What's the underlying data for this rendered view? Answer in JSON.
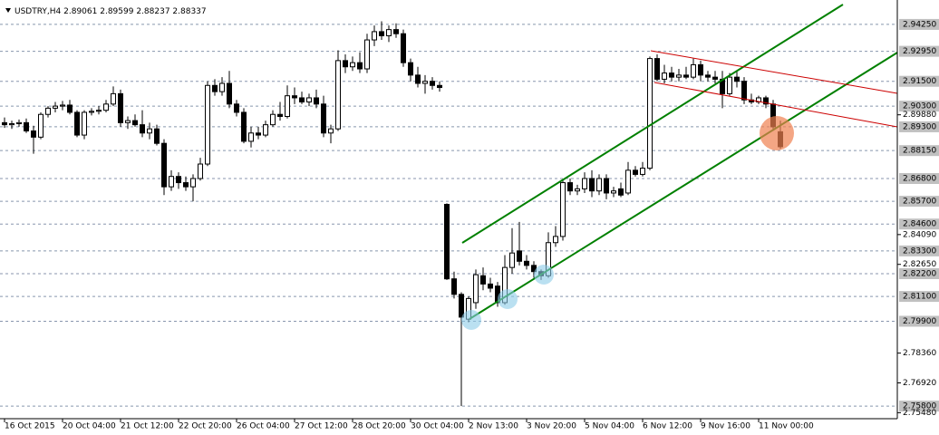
{
  "chart_data": {
    "type": "candlestick",
    "title": "USDTRY,H4",
    "categories": [
      "16 Oct 2015",
      null,
      null,
      null,
      null,
      null,
      null,
      null,
      "20 Oct 04:00",
      null,
      null,
      null,
      null,
      null,
      null,
      null,
      "21 Oct 12:00",
      null,
      null,
      null,
      null,
      null,
      null,
      null,
      "22 Oct 20:00",
      null,
      null,
      null,
      null,
      null,
      null,
      null,
      "26 Oct 04:00",
      null,
      null,
      null,
      null,
      null,
      null,
      null,
      "27 Oct 12:00",
      null,
      null,
      null,
      null,
      null,
      null,
      null,
      "28 Oct 20:00",
      null,
      null,
      null,
      null,
      null,
      null,
      null,
      "30 Oct 04:00",
      null,
      null,
      null,
      null,
      null,
      null,
      null,
      "2 Nov 13:00",
      null,
      null,
      null,
      null,
      null,
      null,
      null,
      "3 Nov 20:00",
      null,
      null,
      null,
      null,
      null,
      null,
      null,
      "5 Nov 04:00",
      null,
      null,
      null,
      null,
      null,
      null,
      null,
      "6 Nov 12:00",
      null,
      null,
      null,
      null,
      null,
      null,
      null,
      "9 Nov 16:00",
      null,
      null,
      null,
      null,
      null,
      null,
      null,
      "11 Nov 00:00",
      null,
      null,
      null
    ],
    "ohlc": [
      [
        2.895,
        2.8975,
        2.8925,
        2.894
      ],
      [
        2.894,
        2.896,
        2.892,
        2.8945
      ],
      [
        2.8945,
        2.8965,
        2.893,
        2.895
      ],
      [
        2.895,
        2.897,
        2.89,
        2.891
      ],
      [
        2.891,
        2.8935,
        2.88,
        2.888
      ],
      [
        2.888,
        2.9,
        2.887,
        2.899
      ],
      [
        2.899,
        2.903,
        2.8975,
        2.902
      ],
      [
        2.902,
        2.905,
        2.9,
        2.903
      ],
      [
        2.903,
        2.9055,
        2.901,
        2.9035
      ],
      [
        2.9035,
        2.906,
        2.899,
        2.9
      ],
      [
        2.9,
        2.901,
        2.888,
        2.889
      ],
      [
        2.889,
        2.901,
        2.887,
        2.9
      ],
      [
        2.9,
        2.902,
        2.8985,
        2.9005
      ],
      [
        2.9005,
        2.903,
        2.899,
        2.901
      ],
      [
        2.901,
        2.906,
        2.9,
        2.904
      ],
      [
        2.904,
        2.9125,
        2.903,
        2.909
      ],
      [
        2.909,
        2.911,
        2.893,
        2.895
      ],
      [
        2.895,
        2.898,
        2.892,
        2.896
      ],
      [
        2.896,
        2.899,
        2.893,
        2.894
      ],
      [
        2.894,
        2.901,
        2.888,
        2.89
      ],
      [
        2.89,
        2.895,
        2.887,
        2.892
      ],
      [
        2.892,
        2.894,
        2.884,
        2.885
      ],
      [
        2.885,
        2.887,
        2.86,
        2.864
      ],
      [
        2.864,
        2.872,
        2.862,
        2.869
      ],
      [
        2.869,
        2.871,
        2.863,
        2.866
      ],
      [
        2.866,
        2.869,
        2.862,
        2.864
      ],
      [
        2.864,
        2.87,
        2.857,
        2.868
      ],
      [
        2.868,
        2.878,
        2.867,
        2.875
      ],
      [
        2.875,
        2.915,
        2.874,
        2.913
      ],
      [
        2.913,
        2.916,
        2.908,
        2.91
      ],
      [
        2.91,
        2.917,
        2.908,
        2.914
      ],
      [
        2.914,
        2.92,
        2.902,
        2.904
      ],
      [
        2.904,
        2.906,
        2.898,
        2.9
      ],
      [
        2.9,
        2.902,
        2.885,
        2.886
      ],
      [
        2.886,
        2.893,
        2.883,
        2.89
      ],
      [
        2.89,
        2.893,
        2.887,
        2.889
      ],
      [
        2.889,
        2.896,
        2.888,
        2.894
      ],
      [
        2.894,
        2.901,
        2.893,
        2.899
      ],
      [
        2.899,
        2.905,
        2.896,
        2.898
      ],
      [
        2.898,
        2.913,
        2.897,
        2.908
      ],
      [
        2.908,
        2.912,
        2.904,
        2.907
      ],
      [
        2.907,
        2.91,
        2.904,
        2.905
      ],
      [
        2.905,
        2.909,
        2.903,
        2.907
      ],
      [
        2.907,
        2.911,
        2.902,
        2.904
      ],
      [
        2.904,
        2.908,
        2.888,
        2.89
      ],
      [
        2.89,
        2.894,
        2.885,
        2.892
      ],
      [
        2.892,
        2.93,
        2.891,
        2.925
      ],
      [
        2.925,
        2.928,
        2.919,
        2.922
      ],
      [
        2.922,
        2.927,
        2.92,
        2.924
      ],
      [
        2.924,
        2.929,
        2.919,
        2.921
      ],
      [
        2.921,
        2.938,
        2.919,
        2.935
      ],
      [
        2.935,
        2.942,
        2.932,
        2.939
      ],
      [
        2.939,
        2.944,
        2.935,
        2.937
      ],
      [
        2.937,
        2.942,
        2.934,
        2.94
      ],
      [
        2.94,
        2.943,
        2.936,
        2.938
      ],
      [
        2.938,
        2.94,
        2.922,
        2.924
      ],
      [
        2.924,
        2.926,
        2.915,
        2.918
      ],
      [
        2.918,
        2.922,
        2.912,
        2.914
      ],
      [
        2.914,
        2.918,
        2.909,
        2.915
      ],
      [
        2.915,
        2.917,
        2.911,
        2.913
      ],
      [
        2.913,
        2.915,
        2.91,
        2.912
      ],
      [
        2.8555,
        2.856,
        2.819,
        2.8195
      ],
      [
        2.8195,
        2.823,
        2.81,
        2.812
      ],
      [
        2.812,
        2.813,
        2.758,
        2.801
      ],
      [
        2.8,
        2.811,
        2.7985,
        2.81
      ],
      [
        2.808,
        2.824,
        2.805,
        2.8215
      ],
      [
        2.821,
        2.825,
        2.814,
        2.817
      ],
      [
        2.817,
        2.82,
        2.813,
        2.815
      ],
      [
        2.816,
        2.818,
        2.806,
        2.808
      ],
      [
        2.808,
        2.831,
        2.807,
        2.825
      ],
      [
        2.825,
        2.844,
        2.822,
        2.832
      ],
      [
        2.833,
        2.847,
        2.826,
        2.828
      ],
      [
        2.828,
        2.831,
        2.824,
        2.826
      ],
      [
        2.826,
        2.828,
        2.82,
        2.823
      ],
      [
        2.823,
        2.824,
        2.819,
        2.821
      ],
      [
        2.821,
        2.842,
        2.82,
        2.837
      ],
      [
        2.837,
        2.845,
        2.835,
        2.84
      ],
      [
        2.84,
        2.867,
        2.838,
        2.866
      ],
      [
        2.866,
        2.868,
        2.86,
        2.862
      ],
      [
        2.862,
        2.865,
        2.86,
        2.863
      ],
      [
        2.863,
        2.871,
        2.861,
        2.868
      ],
      [
        2.868,
        2.872,
        2.859,
        2.862
      ],
      [
        2.862,
        2.87,
        2.86,
        2.868
      ],
      [
        2.868,
        2.87,
        2.858,
        2.861
      ],
      [
        2.861,
        2.864,
        2.859,
        2.862
      ],
      [
        2.863,
        2.866,
        2.859,
        2.86
      ],
      [
        2.861,
        2.876,
        2.86,
        2.872
      ],
      [
        2.872,
        2.874,
        2.869,
        2.87
      ],
      [
        2.87,
        2.876,
        2.869,
        2.873
      ],
      [
        2.873,
        2.927,
        2.872,
        2.926
      ],
      [
        2.926,
        2.928,
        2.915,
        2.916
      ],
      [
        2.916,
        2.923,
        2.914,
        2.919
      ],
      [
        2.919,
        2.922,
        2.915,
        2.917
      ],
      [
        2.917,
        2.921,
        2.915,
        2.918
      ],
      [
        2.918,
        2.922,
        2.916,
        2.917
      ],
      [
        2.917,
        2.926,
        2.916,
        2.923
      ],
      [
        2.923,
        2.925,
        2.915,
        2.918
      ],
      [
        2.918,
        2.92,
        2.915,
        2.917
      ],
      [
        2.917,
        2.92,
        2.914,
        2.916
      ],
      [
        2.916,
        2.92,
        2.902,
        2.909
      ],
      [
        2.909,
        2.919,
        2.908,
        2.917
      ],
      [
        2.917,
        2.92,
        2.912,
        2.915
      ],
      [
        2.915,
        2.917,
        2.904,
        2.906
      ],
      [
        2.906,
        2.909,
        2.904,
        2.905
      ],
      [
        2.905,
        2.908,
        2.904,
        2.907
      ],
      [
        2.907,
        2.908,
        2.902,
        2.904
      ],
      [
        2.904,
        2.906,
        2.891,
        2.893
      ],
      [
        2.89061,
        2.89599,
        2.88237,
        2.88337
      ]
    ],
    "ylim": [
      2.7519,
      2.9543
    ],
    "levels": [
      {
        "value": 2.9425,
        "label": "2.94250"
      },
      {
        "value": 2.9295,
        "label": "2.92950"
      },
      {
        "value": 2.915,
        "label": "2.91500"
      },
      {
        "value": 2.903,
        "label": "2.90300"
      },
      {
        "value": 2.893,
        "label": "2.89300"
      },
      {
        "value": 2.8815,
        "label": "2.88150"
      },
      {
        "value": 2.868,
        "label": "2.86800"
      },
      {
        "value": 2.857,
        "label": "2.85700"
      },
      {
        "value": 2.846,
        "label": "2.84600"
      },
      {
        "value": 2.833,
        "label": "2.83300"
      },
      {
        "value": 2.822,
        "label": "2.82200"
      },
      {
        "value": 2.811,
        "label": "2.81100"
      },
      {
        "value": 2.799,
        "label": "2.79900"
      },
      {
        "value": 2.758,
        "label": "2.75800"
      }
    ],
    "yticks": [
      {
        "value": 2.8988,
        "label": "2.89880"
      },
      {
        "value": 2.8409,
        "label": "2.84090"
      },
      {
        "value": 2.8265,
        "label": "2.82650"
      },
      {
        "value": 2.7836,
        "label": "2.78360"
      },
      {
        "value": 2.7692,
        "label": "2.76920"
      },
      {
        "value": 2.7548,
        "label": "2.75480"
      }
    ],
    "up_color": "#ffffff",
    "down_color": "#000000",
    "level_color": "#8896ad"
  }
}
